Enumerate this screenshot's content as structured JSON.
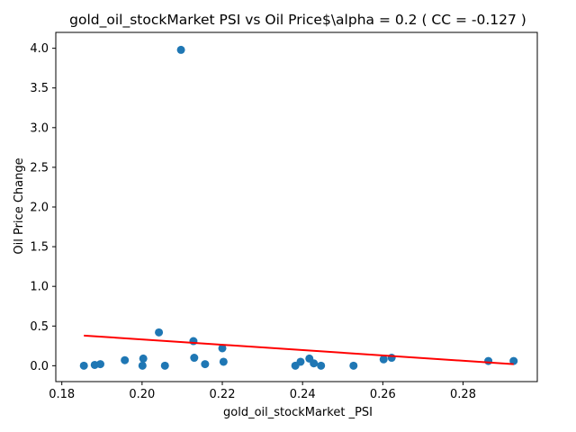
{
  "chart_data": {
    "type": "scatter",
    "title": "gold_oil_stockMarket  PSI vs Oil Price$\\alpha = 0.2 ( CC = -0.127 )",
    "xlabel": "gold_oil_stockMarket _PSI",
    "ylabel": "Oil Price Change",
    "xlim": [
      0.1785,
      0.2985
    ],
    "ylim": [
      -0.2,
      4.2
    ],
    "xticks": [
      0.18,
      0.2,
      0.22,
      0.24,
      0.26,
      0.28
    ],
    "xtick_labels": [
      "0.18",
      "0.20",
      "0.22",
      "0.24",
      "0.26",
      "0.28"
    ],
    "yticks": [
      0.0,
      0.5,
      1.0,
      1.5,
      2.0,
      2.5,
      3.0,
      3.5,
      4.0
    ],
    "ytick_labels": [
      "0.0",
      "0.5",
      "1.0",
      "1.5",
      "2.0",
      "2.5",
      "3.0",
      "3.5",
      "4.0"
    ],
    "grid": false,
    "series": [
      {
        "type": "scatter",
        "color": "#1f77b4",
        "points": [
          {
            "x": 0.1855,
            "y": 0.0
          },
          {
            "x": 0.1882,
            "y": 0.01
          },
          {
            "x": 0.1896,
            "y": 0.02
          },
          {
            "x": 0.1957,
            "y": 0.07
          },
          {
            "x": 0.2001,
            "y": 0.0
          },
          {
            "x": 0.2003,
            "y": 0.09
          },
          {
            "x": 0.2042,
            "y": 0.42
          },
          {
            "x": 0.2057,
            "y": 0.0
          },
          {
            "x": 0.2097,
            "y": 3.98
          },
          {
            "x": 0.2128,
            "y": 0.31
          },
          {
            "x": 0.213,
            "y": 0.1
          },
          {
            "x": 0.2157,
            "y": 0.02
          },
          {
            "x": 0.22,
            "y": 0.22
          },
          {
            "x": 0.2203,
            "y": 0.05
          },
          {
            "x": 0.2382,
            "y": 0.0
          },
          {
            "x": 0.2395,
            "y": 0.05
          },
          {
            "x": 0.2417,
            "y": 0.09
          },
          {
            "x": 0.2428,
            "y": 0.03
          },
          {
            "x": 0.2446,
            "y": 0.0
          },
          {
            "x": 0.2527,
            "y": 0.0
          },
          {
            "x": 0.2602,
            "y": 0.08
          },
          {
            "x": 0.2622,
            "y": 0.1
          },
          {
            "x": 0.2863,
            "y": 0.06
          },
          {
            "x": 0.2926,
            "y": 0.06
          }
        ]
      },
      {
        "type": "line",
        "color": "#ff0000",
        "x": [
          0.1855,
          0.2926
        ],
        "y": [
          0.38,
          0.02
        ]
      }
    ]
  }
}
